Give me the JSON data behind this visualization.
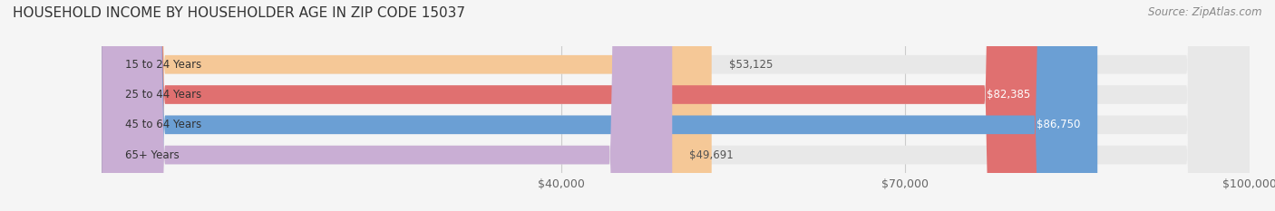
{
  "title": "HOUSEHOLD INCOME BY HOUSEHOLDER AGE IN ZIP CODE 15037",
  "source": "Source: ZipAtlas.com",
  "categories": [
    "15 to 24 Years",
    "25 to 44 Years",
    "45 to 64 Years",
    "65+ Years"
  ],
  "values": [
    53125,
    82385,
    86750,
    49691
  ],
  "bar_colors": [
    "#f5c897",
    "#e07070",
    "#6b9fd4",
    "#c9aed4"
  ],
  "label_colors": [
    "#555555",
    "#ffffff",
    "#ffffff",
    "#555555"
  ],
  "bar_bg_color": "#e8e8e8",
  "bg_color": "#f5f5f5",
  "x_min": 0,
  "x_max": 100000,
  "x_ticks": [
    40000,
    70000,
    100000
  ],
  "x_tick_labels": [
    "$40,000",
    "$70,000",
    "$100,000"
  ],
  "value_labels": [
    "$53,125",
    "$82,385",
    "$86,750",
    "$49,691"
  ],
  "bar_height": 0.62,
  "title_fontsize": 11,
  "source_fontsize": 8.5,
  "label_fontsize": 8.5,
  "tick_fontsize": 9
}
